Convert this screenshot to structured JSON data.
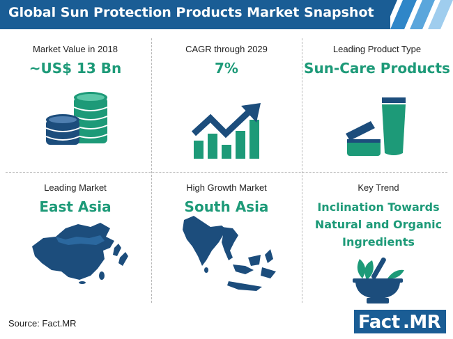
{
  "header": {
    "title": "Global Sun Protection Products Market Snapshot"
  },
  "colors": {
    "header_blue": "#1a5d95",
    "accent_green": "#1d9a78",
    "icon_navy": "#1c4d7c",
    "icon_teal": "#1d9a78"
  },
  "cells": [
    {
      "label": "Market  Value in 2018",
      "value": "~US$ 13 Bn",
      "icon": "coin-stack-icon"
    },
    {
      "label": "CAGR through 2029",
      "value": "7%",
      "icon": "growth-chart-icon"
    },
    {
      "label": "Leading Product Type",
      "value": "Sun-Care Products",
      "icon": "sunscreen-products-icon"
    },
    {
      "label": "Leading Market",
      "value": "East Asia",
      "icon": "east-asia-map-icon"
    },
    {
      "label": "High Growth  Market",
      "value": "South Asia",
      "icon": "south-asia-map-icon"
    },
    {
      "label": "Key Trend",
      "value": "Inclination Towards Natural and Organic Ingredients",
      "icon": "mortar-pestle-leaves-icon"
    }
  ],
  "footer": {
    "source": "Source: Fact.MR",
    "logo_left": "Fact",
    "logo_right": ".MR"
  }
}
